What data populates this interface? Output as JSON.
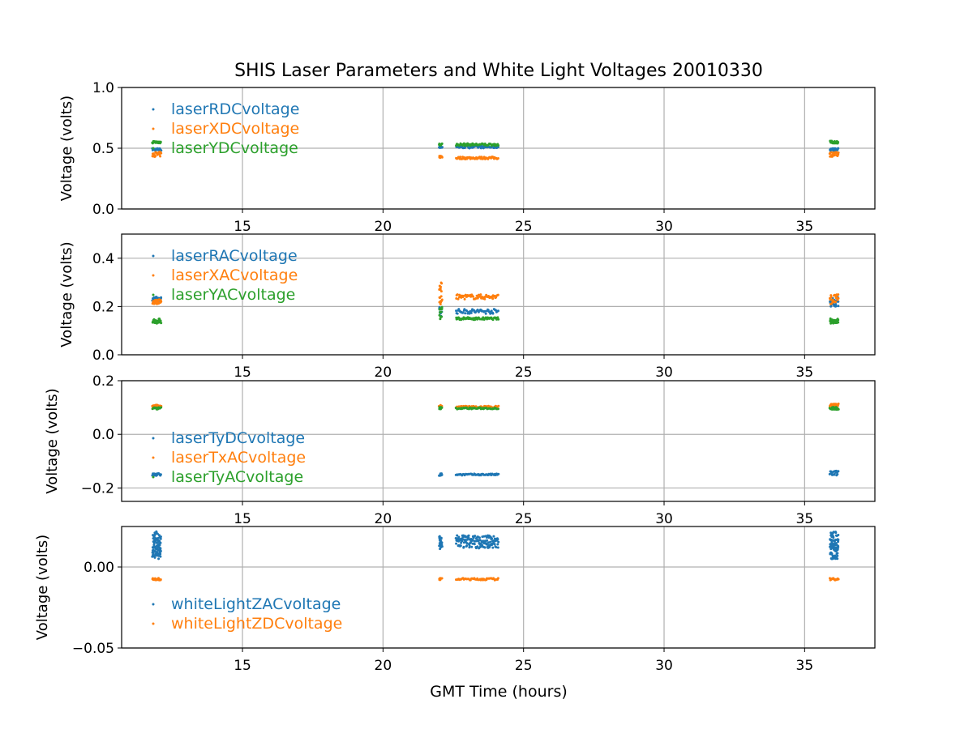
{
  "figure": {
    "title": "SHIS Laser Parameters and White Light Voltages 20010330",
    "xlabel": "GMT Time (hours)"
  },
  "colors": {
    "blue": "#1f77b4",
    "orange": "#ff7f0e",
    "green": "#2ca02c",
    "grid": "#b0b0b0"
  },
  "chart_data": [
    {
      "type": "scatter",
      "ylabel": "Voltage (volts)",
      "xlim": [
        10.7,
        37.5
      ],
      "ylim": [
        0.0,
        1.0
      ],
      "xticks": [
        "15",
        "20",
        "25",
        "30",
        "35"
      ],
      "yticks": [
        "0.0",
        "0.5",
        "1.0"
      ],
      "grid": true,
      "legend_position": "upper-left",
      "series": [
        {
          "name": "laserRDCvoltage",
          "color": "#1f77b4",
          "segments": [
            {
              "x0": 11.8,
              "x1": 12.1,
              "y": 0.49,
              "spread": 0.01,
              "n": 25
            },
            {
              "x0": 22.0,
              "x1": 22.1,
              "y": 0.51,
              "spread": 0.01,
              "n": 8
            },
            {
              "x0": 22.6,
              "x1": 24.1,
              "y": 0.51,
              "spread": 0.01,
              "n": 60
            },
            {
              "x0": 35.9,
              "x1": 36.2,
              "y": 0.49,
              "spread": 0.01,
              "n": 25
            }
          ]
        },
        {
          "name": "laserXDCvoltage",
          "color": "#ff7f0e",
          "segments": [
            {
              "x0": 11.8,
              "x1": 12.1,
              "y": 0.45,
              "spread": 0.02,
              "n": 25
            },
            {
              "x0": 22.0,
              "x1": 22.1,
              "y": 0.43,
              "spread": 0.01,
              "n": 8
            },
            {
              "x0": 22.6,
              "x1": 24.1,
              "y": 0.42,
              "spread": 0.01,
              "n": 60
            },
            {
              "x0": 35.9,
              "x1": 36.2,
              "y": 0.45,
              "spread": 0.02,
              "n": 25
            }
          ]
        },
        {
          "name": "laserYDCvoltage",
          "color": "#2ca02c",
          "segments": [
            {
              "x0": 11.8,
              "x1": 12.1,
              "y": 0.55,
              "spread": 0.01,
              "n": 25
            },
            {
              "x0": 22.0,
              "x1": 22.1,
              "y": 0.53,
              "spread": 0.01,
              "n": 8
            },
            {
              "x0": 22.6,
              "x1": 24.1,
              "y": 0.53,
              "spread": 0.01,
              "n": 60
            },
            {
              "x0": 35.9,
              "x1": 36.2,
              "y": 0.55,
              "spread": 0.01,
              "n": 25
            }
          ]
        }
      ]
    },
    {
      "type": "scatter",
      "ylabel": "Voltage (volts)",
      "xlim": [
        10.7,
        37.5
      ],
      "ylim": [
        0.0,
        0.5
      ],
      "xticks": [
        "15",
        "20",
        "25",
        "30",
        "35"
      ],
      "yticks": [
        "0.0",
        "0.2",
        "0.4"
      ],
      "grid": true,
      "legend_position": "upper-left",
      "series": [
        {
          "name": "laserRACvoltage",
          "color": "#1f77b4",
          "segments": [
            {
              "x0": 11.8,
              "x1": 12.1,
              "y": 0.23,
              "spread": 0.01,
              "n": 25
            },
            {
              "x0": 22.0,
              "x1": 22.1,
              "y": 0.18,
              "spread": 0.02,
              "n": 10
            },
            {
              "x0": 22.6,
              "x1": 24.1,
              "y": 0.18,
              "spread": 0.01,
              "n": 60
            },
            {
              "x0": 35.9,
              "x1": 36.2,
              "y": 0.22,
              "spread": 0.02,
              "n": 25
            }
          ]
        },
        {
          "name": "laserXACvoltage",
          "color": "#ff7f0e",
          "segments": [
            {
              "x0": 11.8,
              "x1": 12.1,
              "y": 0.22,
              "spread": 0.01,
              "n": 25
            },
            {
              "x0": 22.0,
              "x1": 22.1,
              "y": 0.25,
              "spread": 0.05,
              "n": 18
            },
            {
              "x0": 22.6,
              "x1": 24.1,
              "y": 0.24,
              "spread": 0.01,
              "n": 60
            },
            {
              "x0": 35.9,
              "x1": 36.2,
              "y": 0.23,
              "spread": 0.02,
              "n": 25
            }
          ]
        },
        {
          "name": "laserYACvoltage",
          "color": "#2ca02c",
          "segments": [
            {
              "x0": 11.8,
              "x1": 12.1,
              "y": 0.14,
              "spread": 0.01,
              "n": 25
            },
            {
              "x0": 22.0,
              "x1": 22.1,
              "y": 0.17,
              "spread": 0.03,
              "n": 12
            },
            {
              "x0": 22.6,
              "x1": 24.1,
              "y": 0.15,
              "spread": 0.005,
              "n": 60
            },
            {
              "x0": 35.9,
              "x1": 36.2,
              "y": 0.14,
              "spread": 0.01,
              "n": 25
            }
          ]
        }
      ]
    },
    {
      "type": "scatter",
      "ylabel": "Voltage (volts)",
      "xlim": [
        10.7,
        37.5
      ],
      "ylim": [
        -0.25,
        0.2
      ],
      "xticks": [
        "15",
        "20",
        "25",
        "30",
        "35"
      ],
      "yticks": [
        "−0.2",
        "0.0",
        "0.2"
      ],
      "grid": true,
      "legend_position": "lower-left",
      "series": [
        {
          "name": "laserTyDCvoltage",
          "color": "#1f77b4",
          "segments": [
            {
              "x0": 11.8,
              "x1": 12.1,
              "y": -0.15,
              "spread": 0.005,
              "n": 20
            },
            {
              "x0": 22.0,
              "x1": 22.1,
              "y": -0.15,
              "spread": 0.005,
              "n": 8
            },
            {
              "x0": 22.6,
              "x1": 24.1,
              "y": -0.15,
              "spread": 0.003,
              "n": 50
            },
            {
              "x0": 35.9,
              "x1": 36.2,
              "y": -0.145,
              "spread": 0.01,
              "n": 20
            }
          ]
        },
        {
          "name": "laserTxACvoltage",
          "color": "#ff7f0e",
          "segments": [
            {
              "x0": 11.8,
              "x1": 12.1,
              "y": 0.105,
              "spread": 0.005,
              "n": 20
            },
            {
              "x0": 22.0,
              "x1": 22.1,
              "y": 0.105,
              "spread": 0.005,
              "n": 8
            },
            {
              "x0": 22.6,
              "x1": 24.1,
              "y": 0.102,
              "spread": 0.004,
              "n": 50
            },
            {
              "x0": 35.9,
              "x1": 36.2,
              "y": 0.11,
              "spread": 0.005,
              "n": 20
            }
          ]
        },
        {
          "name": "laserTyACvoltage",
          "color": "#2ca02c",
          "segments": [
            {
              "x0": 11.8,
              "x1": 12.1,
              "y": 0.097,
              "spread": 0.004,
              "n": 20
            },
            {
              "x0": 22.0,
              "x1": 22.1,
              "y": 0.098,
              "spread": 0.004,
              "n": 8
            },
            {
              "x0": 22.6,
              "x1": 24.1,
              "y": 0.097,
              "spread": 0.003,
              "n": 50
            },
            {
              "x0": 35.9,
              "x1": 36.2,
              "y": 0.097,
              "spread": 0.005,
              "n": 20
            }
          ]
        }
      ]
    },
    {
      "type": "scatter",
      "ylabel": "Voltage (volts)",
      "xlim": [
        10.7,
        37.5
      ],
      "ylim": [
        -0.05,
        0.025
      ],
      "xticks": [
        "15",
        "20",
        "25",
        "30",
        "35"
      ],
      "yticks": [
        "−0.05",
        "0.00"
      ],
      "grid": true,
      "legend_position": "lower-left",
      "series": [
        {
          "name": "whiteLightZACvoltage",
          "color": "#1f77b4",
          "segments": [
            {
              "x0": 11.8,
              "x1": 12.1,
              "y": 0.0135,
              "spread": 0.0085,
              "n": 90
            },
            {
              "x0": 22.0,
              "x1": 22.1,
              "y": 0.015,
              "spread": 0.004,
              "n": 25
            },
            {
              "x0": 22.6,
              "x1": 24.1,
              "y": 0.0155,
              "spread": 0.004,
              "n": 160
            },
            {
              "x0": 35.9,
              "x1": 36.2,
              "y": 0.0135,
              "spread": 0.0085,
              "n": 90
            }
          ]
        },
        {
          "name": "whiteLightZDCvoltage",
          "color": "#ff7f0e",
          "segments": [
            {
              "x0": 11.8,
              "x1": 12.1,
              "y": -0.0075,
              "spread": 0.0006,
              "n": 20
            },
            {
              "x0": 22.0,
              "x1": 22.1,
              "y": -0.0075,
              "spread": 0.0006,
              "n": 8
            },
            {
              "x0": 22.6,
              "x1": 24.1,
              "y": -0.0075,
              "spread": 0.0006,
              "n": 50
            },
            {
              "x0": 35.9,
              "x1": 36.2,
              "y": -0.0075,
              "spread": 0.0006,
              "n": 20
            }
          ]
        }
      ]
    }
  ]
}
